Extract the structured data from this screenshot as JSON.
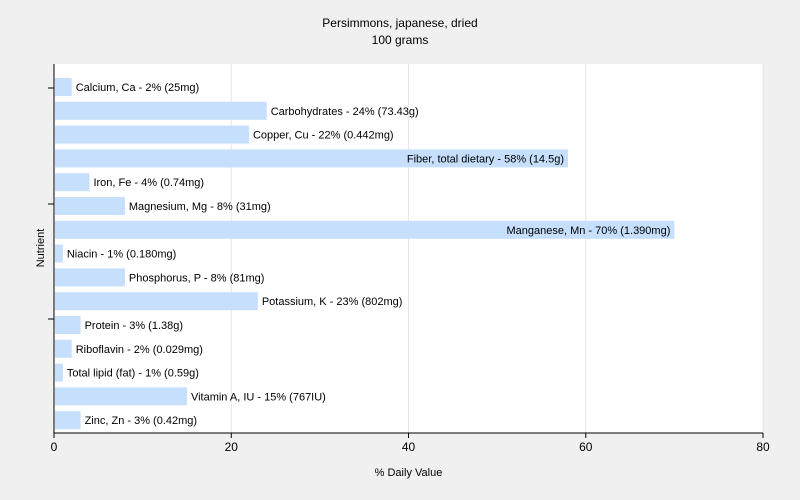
{
  "chart_data": {
    "type": "bar",
    "orientation": "horizontal",
    "title": "Persimmons, japanese, dried",
    "subtitle": "100 grams",
    "xlabel": "% Daily Value",
    "ylabel": "Nutrient",
    "xlim": [
      0,
      80
    ],
    "xticks": [
      0,
      20,
      40,
      60,
      80
    ],
    "grid": true,
    "colors": {
      "bar": "#c6dffc",
      "background": "#f0f0f0",
      "plot_background": "#ffffff",
      "grid": "#e6e6e6",
      "axis": "#000000"
    },
    "categories": [
      "Calcium, Ca",
      "Carbohydrates",
      "Copper, Cu",
      "Fiber, total dietary",
      "Iron, Fe",
      "Magnesium, Mg",
      "Manganese, Mn",
      "Niacin",
      "Phosphorus, P",
      "Potassium, K",
      "Protein",
      "Riboflavin",
      "Total lipid (fat)",
      "Vitamin A, IU",
      "Zinc, Zn"
    ],
    "values": [
      2,
      24,
      22,
      58,
      4,
      8,
      70,
      1,
      8,
      23,
      3,
      2,
      1,
      15,
      3
    ],
    "labels": [
      "Calcium, Ca - 2% (25mg)",
      "Carbohydrates - 24% (73.43g)",
      "Copper, Cu - 22% (0.442mg)",
      "Fiber, total dietary - 58% (14.5g)",
      "Iron, Fe - 4% (0.74mg)",
      "Magnesium, Mg - 8% (31mg)",
      "Manganese, Mn - 70% (1.390mg)",
      "Niacin - 1% (0.180mg)",
      "Phosphorus, P - 8% (81mg)",
      "Potassium, K - 23% (802mg)",
      "Protein - 3% (1.38g)",
      "Riboflavin - 2% (0.029mg)",
      "Total lipid (fat) - 1% (0.59g)",
      "Vitamin A, IU - 15% (767IU)",
      "Zinc, Zn - 3% (0.42mg)"
    ]
  }
}
